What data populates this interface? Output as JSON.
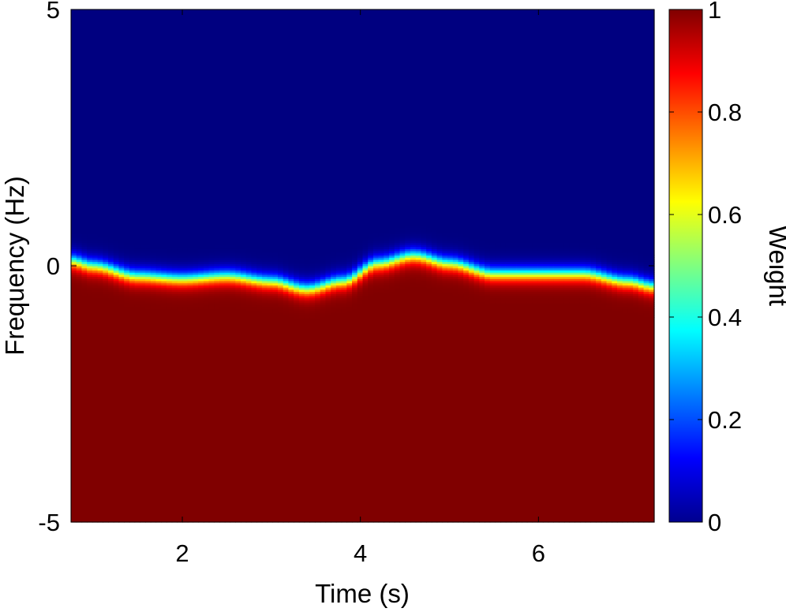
{
  "chart_data": {
    "type": "heatmap",
    "title": "",
    "xlabel": "Time (s)",
    "ylabel": "Frequency (Hz)",
    "xlim": [
      0.75,
      7.3
    ],
    "ylim": [
      -5,
      5
    ],
    "xticks": [
      2,
      4,
      6
    ],
    "yticks": [
      -5,
      0,
      5
    ],
    "colorbar": {
      "label": "Weight",
      "colormap": "jet",
      "range": [
        0,
        1
      ],
      "ticks": [
        0,
        0.2,
        0.4,
        0.6,
        0.8,
        1
      ]
    },
    "description_values": {
      "weight_below_boundary": 1,
      "weight_above_boundary": 0,
      "transition_width_hz": 0.35
    },
    "boundary": {
      "time_s": [
        0.75,
        1.0,
        1.5,
        2.0,
        2.5,
        3.0,
        3.4,
        3.8,
        4.2,
        4.6,
        5.0,
        5.5,
        6.0,
        6.5,
        7.0,
        7.3
      ],
      "frequency_hz": [
        0.1,
        0.0,
        -0.2,
        -0.25,
        -0.2,
        -0.3,
        -0.45,
        -0.3,
        0.05,
        0.2,
        0.05,
        -0.15,
        -0.15,
        -0.15,
        -0.3,
        -0.4
      ]
    }
  }
}
